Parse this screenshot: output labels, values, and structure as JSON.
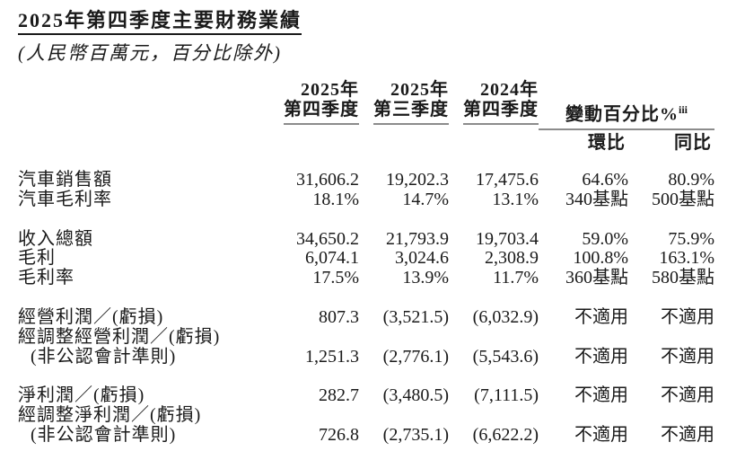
{
  "title": "2025年第四季度主要財務業績",
  "subtitle": "(人民幣百萬元，百分比除外)",
  "colors": {
    "text": "#1a1a1a",
    "title_rule": "#1a1a1a",
    "header_rule": "#8c8c8c",
    "background": "#ffffff"
  },
  "header": {
    "quarter_columns": [
      {
        "line1": "2025年",
        "line2": "第四季度"
      },
      {
        "line1": "2025年",
        "line2": "第三季度"
      },
      {
        "line1": "2024年",
        "line2": "第四季度"
      }
    ],
    "change_label": "變動百分比%",
    "change_superscript": "iii",
    "sub_columns": {
      "qoq": "環比",
      "yoy": "同比"
    }
  },
  "table": {
    "groups": [
      {
        "rows": [
          {
            "label": "汽車銷售額",
            "values": [
              "31,606.2",
              "19,202.3",
              "17,475.6",
              "64.6%",
              "80.9%"
            ]
          },
          {
            "label": "汽車毛利率",
            "values": [
              "18.1%",
              "14.7%",
              "13.1%",
              "340基點",
              "500基點"
            ]
          }
        ]
      },
      {
        "rows": [
          {
            "label": "收入總額",
            "values": [
              "34,650.2",
              "21,793.9",
              "19,703.4",
              "59.0%",
              "75.9%"
            ]
          },
          {
            "label": "毛利",
            "values": [
              "6,074.1",
              "3,024.6",
              "2,308.9",
              "100.8%",
              "163.1%"
            ]
          },
          {
            "label": "毛利率",
            "values": [
              "17.5%",
              "13.9%",
              "11.7%",
              "360基點",
              "580基點"
            ]
          }
        ]
      },
      {
        "rows": [
          {
            "label": "經營利潤／(虧損)",
            "values": [
              "807.3",
              "(3,521.5)",
              "(6,032.9)",
              "不適用",
              "不適用"
            ]
          },
          {
            "label": "經調整經營利潤／(虧損)",
            "values": [
              "",
              "",
              "",
              "",
              ""
            ]
          },
          {
            "label": "(非公認會計準則)",
            "values": [
              "1,251.3",
              "(2,776.1)",
              "(5,543.6)",
              "不適用",
              "不適用"
            ]
          }
        ]
      },
      {
        "rows": [
          {
            "label": "淨利潤／(虧損)",
            "values": [
              "282.7",
              "(3,480.5)",
              "(7,111.5)",
              "不適用",
              "不適用"
            ]
          },
          {
            "label": "經調整淨利潤／(虧損)",
            "values": [
              "",
              "",
              "",
              "",
              ""
            ]
          },
          {
            "label": "(非公認會計準則)",
            "values": [
              "726.8",
              "(2,735.1)",
              "(6,622.2)",
              "不適用",
              "不適用"
            ]
          }
        ]
      }
    ]
  }
}
